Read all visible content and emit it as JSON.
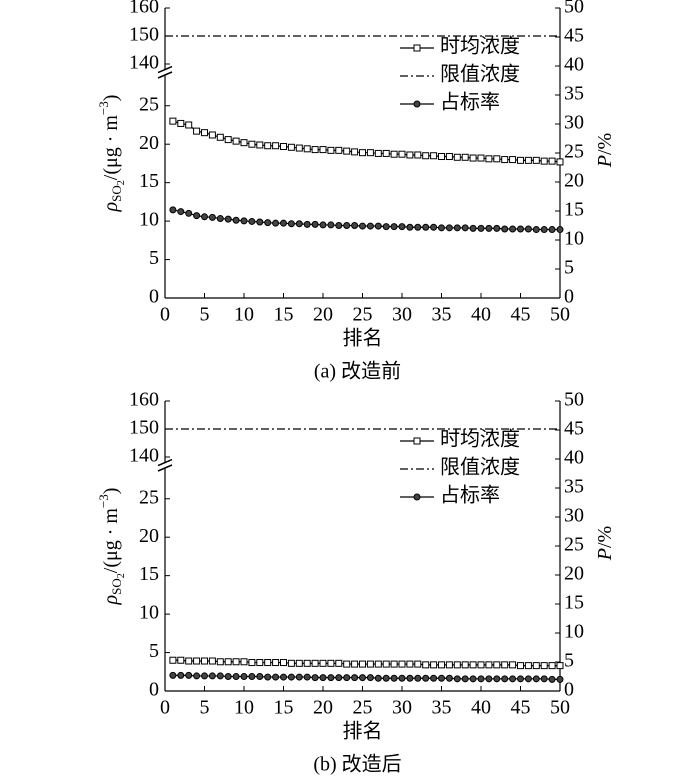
{
  "chart_data": [
    {
      "type": "line",
      "caption": "(a) 改造前",
      "xlabel": "排名",
      "ylabel": {
        "rho": "ρ",
        "sub": "SO",
        "subsub": "2",
        "unit": "/(μg · m",
        "exp": "−3",
        "close": ")"
      },
      "y2label": {
        "symbol": "P",
        "unit": "/%"
      },
      "x": [
        1,
        2,
        3,
        4,
        5,
        6,
        7,
        8,
        9,
        10,
        11,
        12,
        13,
        14,
        15,
        16,
        17,
        18,
        19,
        20,
        21,
        22,
        23,
        24,
        25,
        26,
        27,
        28,
        29,
        30,
        31,
        32,
        33,
        34,
        35,
        36,
        37,
        38,
        39,
        40,
        41,
        42,
        43,
        44,
        45,
        46,
        47,
        48,
        49,
        50
      ],
      "xlim": [
        0,
        50
      ],
      "xticks": [
        0,
        5,
        10,
        15,
        20,
        25,
        30,
        35,
        40,
        45,
        50
      ],
      "ylim": [
        0,
        160
      ],
      "ybreak": [
        29,
        138
      ],
      "yticks": [
        0,
        5,
        10,
        15,
        20,
        25,
        140,
        150,
        160
      ],
      "y2lim": [
        0,
        50
      ],
      "y2ticks": [
        0,
        5,
        10,
        15,
        20,
        25,
        30,
        35,
        40,
        45,
        50
      ],
      "series": [
        {
          "name": "时均浓度",
          "color": "#000",
          "marker": "square",
          "dash": "solid",
          "values": [
            23.0,
            22.7,
            22.5,
            21.7,
            21.5,
            21.2,
            20.9,
            20.6,
            20.4,
            20.2,
            20.0,
            19.9,
            19.8,
            19.8,
            19.7,
            19.6,
            19.5,
            19.4,
            19.3,
            19.3,
            19.2,
            19.2,
            19.1,
            19.0,
            18.9,
            18.9,
            18.8,
            18.8,
            18.7,
            18.7,
            18.6,
            18.6,
            18.5,
            18.5,
            18.4,
            18.4,
            18.3,
            18.3,
            18.2,
            18.2,
            18.1,
            18.1,
            18.0,
            18.0,
            17.9,
            17.9,
            17.9,
            17.8,
            17.8,
            17.7
          ]
        },
        {
          "name": "限值浓度",
          "color": "#000",
          "marker": "none",
          "dash": "dashdot",
          "x": [
            0,
            50
          ],
          "values": [
            150,
            150
          ]
        },
        {
          "name": "占标率",
          "color": "#000",
          "marker": "circle",
          "dash": "solid",
          "axis": "y2",
          "values": [
            15.2,
            14.9,
            14.6,
            14.2,
            14.0,
            13.9,
            13.7,
            13.6,
            13.4,
            13.3,
            13.2,
            13.1,
            13.0,
            12.9,
            12.9,
            12.8,
            12.8,
            12.7,
            12.7,
            12.6,
            12.6,
            12.5,
            12.5,
            12.5,
            12.4,
            12.4,
            12.4,
            12.3,
            12.3,
            12.3,
            12.2,
            12.2,
            12.2,
            12.2,
            12.1,
            12.1,
            12.1,
            12.1,
            12.0,
            12.0,
            12.0,
            12.0,
            11.9,
            11.9,
            11.9,
            11.9,
            11.8,
            11.8,
            11.8,
            11.8
          ]
        }
      ]
    },
    {
      "type": "line",
      "caption": "(b) 改造后",
      "xlabel": "排名",
      "ylabel": {
        "rho": "ρ",
        "sub": "SO",
        "subsub": "2",
        "unit": "/(μg · m",
        "exp": "−3",
        "close": ")"
      },
      "y2label": {
        "symbol": "P",
        "unit": "/%"
      },
      "x": [
        1,
        2,
        3,
        4,
        5,
        6,
        7,
        8,
        9,
        10,
        11,
        12,
        13,
        14,
        15,
        16,
        17,
        18,
        19,
        20,
        21,
        22,
        23,
        24,
        25,
        26,
        27,
        28,
        29,
        30,
        31,
        32,
        33,
        34,
        35,
        36,
        37,
        38,
        39,
        40,
        41,
        42,
        43,
        44,
        45,
        46,
        47,
        48,
        49,
        50
      ],
      "xlim": [
        0,
        50
      ],
      "xticks": [
        0,
        5,
        10,
        15,
        20,
        25,
        30,
        35,
        40,
        45,
        50
      ],
      "ylim": [
        0,
        160
      ],
      "ybreak": [
        29,
        138
      ],
      "yticks": [
        0,
        5,
        10,
        15,
        20,
        25,
        140,
        150,
        160
      ],
      "y2lim": [
        0,
        50
      ],
      "y2ticks": [
        0,
        5,
        10,
        15,
        20,
        25,
        30,
        35,
        40,
        45,
        50
      ],
      "series": [
        {
          "name": "时均浓度",
          "color": "#000",
          "marker": "square",
          "dash": "solid",
          "values": [
            4.0,
            4.0,
            3.9,
            3.9,
            3.9,
            3.9,
            3.8,
            3.8,
            3.8,
            3.8,
            3.7,
            3.7,
            3.7,
            3.7,
            3.7,
            3.6,
            3.6,
            3.6,
            3.6,
            3.6,
            3.6,
            3.6,
            3.5,
            3.5,
            3.5,
            3.5,
            3.5,
            3.5,
            3.5,
            3.5,
            3.5,
            3.5,
            3.4,
            3.4,
            3.4,
            3.4,
            3.4,
            3.4,
            3.4,
            3.4,
            3.4,
            3.4,
            3.4,
            3.4,
            3.3,
            3.3,
            3.3,
            3.3,
            3.3,
            3.3
          ]
        },
        {
          "name": "限值浓度",
          "color": "#000",
          "marker": "none",
          "dash": "dashdot",
          "x": [
            0,
            50
          ],
          "values": [
            150,
            150
          ]
        },
        {
          "name": "占标率",
          "color": "#000",
          "marker": "circle",
          "dash": "solid",
          "axis": "y2",
          "values": [
            2.7,
            2.7,
            2.7,
            2.6,
            2.6,
            2.6,
            2.6,
            2.5,
            2.5,
            2.5,
            2.5,
            2.5,
            2.4,
            2.4,
            2.4,
            2.4,
            2.4,
            2.4,
            2.3,
            2.3,
            2.3,
            2.3,
            2.3,
            2.3,
            2.3,
            2.3,
            2.2,
            2.2,
            2.2,
            2.2,
            2.2,
            2.2,
            2.2,
            2.2,
            2.2,
            2.2,
            2.1,
            2.1,
            2.1,
            2.1,
            2.1,
            2.1,
            2.1,
            2.1,
            2.1,
            2.1,
            2.1,
            2.1,
            2.0,
            2.0
          ]
        }
      ]
    }
  ]
}
